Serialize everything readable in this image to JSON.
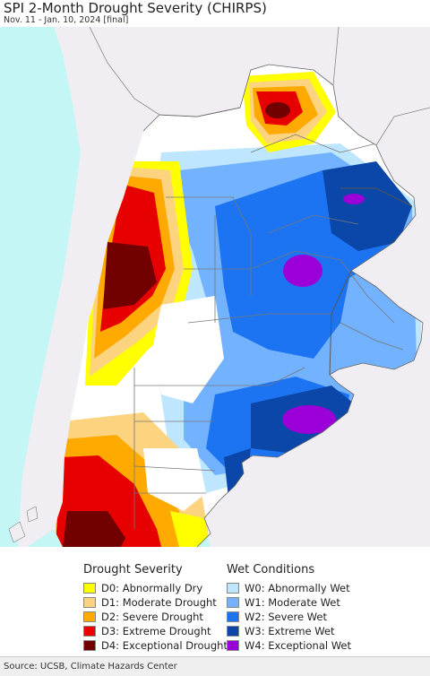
{
  "title": "SPI 2-Month Drought Severity (CHIRPS)",
  "subtitle": "Nov. 11 - Jan. 10, 2024 [final]",
  "colors": {
    "ocean": "#c4f6f6",
    "neighbor_land": "#f0eef2",
    "D0": "#ffff00",
    "D1": "#fcd37f",
    "D2": "#ffaa00",
    "D3": "#e60000",
    "D4": "#730000",
    "W0": "#bfe6ff",
    "W1": "#73b2ff",
    "W2": "#1d74f2",
    "W3": "#0a47a8",
    "W4": "#9b00d8"
  },
  "legend": {
    "drought_heading": "Drought Severity",
    "wet_heading": "Wet Conditions",
    "drought_items": [
      {
        "code": "D0",
        "label": "D0: Abnormally Dry",
        "color": "#ffff00"
      },
      {
        "code": "D1",
        "label": "D1: Moderate Drought",
        "color": "#fcd37f"
      },
      {
        "code": "D2",
        "label": "D2: Severe Drought",
        "color": "#ffaa00"
      },
      {
        "code": "D3",
        "label": "D3: Extreme Drought",
        "color": "#e60000"
      },
      {
        "code": "D4",
        "label": "D4: Exceptional Drought",
        "color": "#730000"
      }
    ],
    "wet_items": [
      {
        "code": "W0",
        "label": "W0: Abnormally Wet",
        "color": "#bfe6ff"
      },
      {
        "code": "W1",
        "label": "W1: Moderate Wet",
        "color": "#73b2ff"
      },
      {
        "code": "W2",
        "label": "W2: Severe Wet",
        "color": "#1d74f2"
      },
      {
        "code": "W3",
        "label": "W3: Extreme Wet",
        "color": "#0a47a8"
      },
      {
        "code": "W4",
        "label": "W4: Exceptional Wet",
        "color": "#9b00d8"
      }
    ]
  },
  "source": "Source: UCSB, Climate Hazards Center"
}
